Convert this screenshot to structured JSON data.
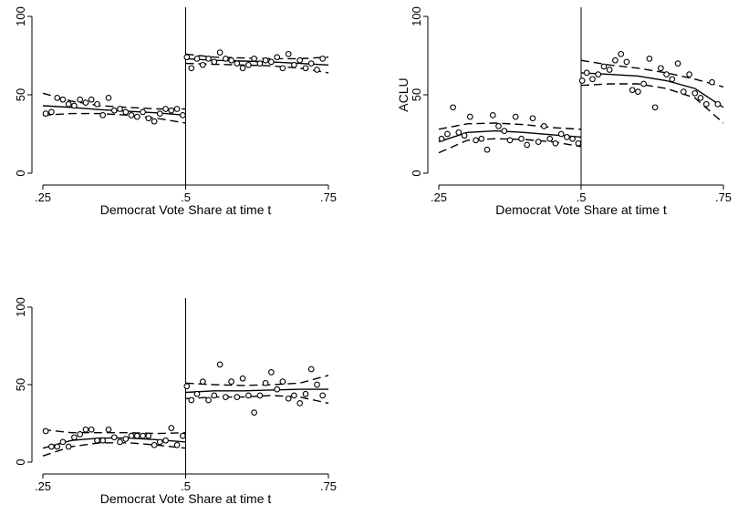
{
  "chart_data": [
    {
      "type": "scatter",
      "xlabel": "Democrat Vote Share at time t",
      "ylabel": "",
      "xlim": [
        0.25,
        0.75
      ],
      "ylim": [
        0,
        100
      ],
      "xticks": [
        ".25",
        ".5",
        ".75"
      ],
      "yticks": [
        "0",
        "50",
        "100"
      ],
      "threshold": 0.5,
      "points": [
        [
          0.255,
          38
        ],
        [
          0.265,
          39
        ],
        [
          0.275,
          48
        ],
        [
          0.285,
          47
        ],
        [
          0.295,
          44
        ],
        [
          0.305,
          43
        ],
        [
          0.315,
          47
        ],
        [
          0.325,
          45
        ],
        [
          0.335,
          47
        ],
        [
          0.345,
          44
        ],
        [
          0.355,
          37
        ],
        [
          0.365,
          48
        ],
        [
          0.375,
          40
        ],
        [
          0.385,
          41
        ],
        [
          0.395,
          39
        ],
        [
          0.405,
          37
        ],
        [
          0.415,
          36
        ],
        [
          0.425,
          39
        ],
        [
          0.435,
          35
        ],
        [
          0.445,
          33
        ],
        [
          0.455,
          38
        ],
        [
          0.465,
          41
        ],
        [
          0.475,
          40
        ],
        [
          0.485,
          41
        ],
        [
          0.495,
          37
        ],
        [
          0.502,
          74
        ],
        [
          0.51,
          67
        ],
        [
          0.52,
          73
        ],
        [
          0.53,
          69
        ],
        [
          0.54,
          73
        ],
        [
          0.55,
          71
        ],
        [
          0.56,
          77
        ],
        [
          0.57,
          73
        ],
        [
          0.58,
          72
        ],
        [
          0.59,
          70
        ],
        [
          0.6,
          67
        ],
        [
          0.61,
          69
        ],
        [
          0.62,
          73
        ],
        [
          0.63,
          70
        ],
        [
          0.64,
          72
        ],
        [
          0.65,
          71
        ],
        [
          0.66,
          74
        ],
        [
          0.67,
          67
        ],
        [
          0.68,
          76
        ],
        [
          0.69,
          69
        ],
        [
          0.7,
          72
        ],
        [
          0.71,
          67
        ],
        [
          0.72,
          70
        ],
        [
          0.73,
          66
        ],
        [
          0.74,
          73
        ]
      ],
      "fit_left": [
        [
          0.25,
          43
        ],
        [
          0.3,
          42
        ],
        [
          0.35,
          40.5
        ],
        [
          0.4,
          39.5
        ],
        [
          0.45,
          38.5
        ],
        [
          0.5,
          37
        ]
      ],
      "ci_upper_left": [
        [
          0.25,
          51
        ],
        [
          0.3,
          46
        ],
        [
          0.35,
          43
        ],
        [
          0.4,
          42
        ],
        [
          0.45,
          41
        ],
        [
          0.5,
          41
        ]
      ],
      "ci_lower_left": [
        [
          0.25,
          37
        ],
        [
          0.3,
          38
        ],
        [
          0.35,
          38
        ],
        [
          0.4,
          37
        ],
        [
          0.45,
          35
        ],
        [
          0.5,
          32
        ]
      ],
      "fit_right": [
        [
          0.5,
          73
        ],
        [
          0.55,
          72
        ],
        [
          0.6,
          71.5
        ],
        [
          0.65,
          71
        ],
        [
          0.7,
          70
        ],
        [
          0.75,
          69
        ]
      ],
      "ci_upper_right": [
        [
          0.5,
          76
        ],
        [
          0.55,
          74
        ],
        [
          0.6,
          73.5
        ],
        [
          0.65,
          73
        ],
        [
          0.7,
          73
        ],
        [
          0.75,
          74
        ]
      ],
      "ci_lower_right": [
        [
          0.5,
          70
        ],
        [
          0.55,
          69.5
        ],
        [
          0.6,
          69
        ],
        [
          0.65,
          68.5
        ],
        [
          0.7,
          67
        ],
        [
          0.75,
          64
        ]
      ]
    },
    {
      "type": "scatter",
      "xlabel": "Democrat Vote Share at time t",
      "ylabel": "ACLU",
      "xlim": [
        0.25,
        0.75
      ],
      "ylim": [
        0,
        100
      ],
      "xticks": [
        ".25",
        ".5",
        ".75"
      ],
      "yticks": [
        "0",
        "50",
        "100"
      ],
      "threshold": 0.5,
      "points": [
        [
          0.255,
          22
        ],
        [
          0.265,
          25
        ],
        [
          0.275,
          42
        ],
        [
          0.285,
          26
        ],
        [
          0.295,
          24
        ],
        [
          0.305,
          36
        ],
        [
          0.315,
          21
        ],
        [
          0.325,
          22
        ],
        [
          0.335,
          15
        ],
        [
          0.345,
          37
        ],
        [
          0.355,
          30
        ],
        [
          0.365,
          27
        ],
        [
          0.375,
          21
        ],
        [
          0.385,
          36
        ],
        [
          0.395,
          22
        ],
        [
          0.405,
          18
        ],
        [
          0.415,
          35
        ],
        [
          0.425,
          20
        ],
        [
          0.435,
          30
        ],
        [
          0.445,
          22
        ],
        [
          0.455,
          19
        ],
        [
          0.465,
          25
        ],
        [
          0.475,
          23
        ],
        [
          0.485,
          22
        ],
        [
          0.495,
          19
        ],
        [
          0.502,
          59
        ],
        [
          0.51,
          64
        ],
        [
          0.52,
          60
        ],
        [
          0.53,
          63
        ],
        [
          0.54,
          68
        ],
        [
          0.55,
          66
        ],
        [
          0.56,
          72
        ],
        [
          0.57,
          76
        ],
        [
          0.58,
          71
        ],
        [
          0.59,
          53
        ],
        [
          0.6,
          52
        ],
        [
          0.61,
          57
        ],
        [
          0.62,
          73
        ],
        [
          0.63,
          42
        ],
        [
          0.64,
          67
        ],
        [
          0.65,
          63
        ],
        [
          0.66,
          60
        ],
        [
          0.67,
          70
        ],
        [
          0.68,
          52
        ],
        [
          0.69,
          63
        ],
        [
          0.7,
          51
        ],
        [
          0.71,
          48
        ],
        [
          0.72,
          44
        ],
        [
          0.73,
          58
        ],
        [
          0.74,
          44
        ]
      ],
      "fit_left": [
        [
          0.25,
          20
        ],
        [
          0.3,
          26
        ],
        [
          0.35,
          27
        ],
        [
          0.4,
          26
        ],
        [
          0.45,
          24.5
        ],
        [
          0.5,
          23
        ]
      ],
      "ci_upper_left": [
        [
          0.25,
          28
        ],
        [
          0.3,
          31.5
        ],
        [
          0.35,
          32
        ],
        [
          0.4,
          31
        ],
        [
          0.45,
          29
        ],
        [
          0.5,
          28
        ]
      ],
      "ci_lower_left": [
        [
          0.25,
          13
        ],
        [
          0.3,
          21
        ],
        [
          0.35,
          22
        ],
        [
          0.4,
          21.5
        ],
        [
          0.45,
          20
        ],
        [
          0.5,
          17
        ]
      ],
      "fit_right": [
        [
          0.5,
          64
        ],
        [
          0.55,
          63
        ],
        [
          0.6,
          62
        ],
        [
          0.65,
          59
        ],
        [
          0.7,
          54
        ],
        [
          0.75,
          42
        ]
      ],
      "ci_upper_right": [
        [
          0.5,
          72
        ],
        [
          0.55,
          69
        ],
        [
          0.6,
          67
        ],
        [
          0.65,
          64
        ],
        [
          0.7,
          60
        ],
        [
          0.75,
          55
        ]
      ],
      "ci_lower_right": [
        [
          0.5,
          56
        ],
        [
          0.55,
          57
        ],
        [
          0.6,
          57
        ],
        [
          0.65,
          54
        ],
        [
          0.7,
          48
        ],
        [
          0.75,
          32
        ]
      ]
    },
    {
      "type": "scatter",
      "xlabel": "Democrat Vote Share at time t",
      "ylabel": "",
      "xlim": [
        0.25,
        0.75
      ],
      "ylim": [
        0,
        100
      ],
      "xticks": [
        ".25",
        ".5",
        ".75"
      ],
      "yticks": [
        "0",
        "50",
        "100"
      ],
      "threshold": 0.5,
      "points": [
        [
          0.255,
          20
        ],
        [
          0.265,
          10
        ],
        [
          0.275,
          10
        ],
        [
          0.285,
          13
        ],
        [
          0.295,
          10
        ],
        [
          0.305,
          16
        ],
        [
          0.315,
          18
        ],
        [
          0.325,
          21
        ],
        [
          0.335,
          21
        ],
        [
          0.345,
          14
        ],
        [
          0.355,
          14
        ],
        [
          0.365,
          21
        ],
        [
          0.375,
          16
        ],
        [
          0.385,
          13
        ],
        [
          0.395,
          15
        ],
        [
          0.405,
          17
        ],
        [
          0.415,
          17
        ],
        [
          0.425,
          17
        ],
        [
          0.435,
          17
        ],
        [
          0.445,
          11
        ],
        [
          0.455,
          13
        ],
        [
          0.465,
          14
        ],
        [
          0.475,
          22
        ],
        [
          0.485,
          11
        ],
        [
          0.495,
          17
        ],
        [
          0.502,
          49
        ],
        [
          0.51,
          40
        ],
        [
          0.52,
          44
        ],
        [
          0.53,
          52
        ],
        [
          0.54,
          40
        ],
        [
          0.55,
          43
        ],
        [
          0.56,
          63
        ],
        [
          0.57,
          42
        ],
        [
          0.58,
          52
        ],
        [
          0.59,
          42
        ],
        [
          0.6,
          54
        ],
        [
          0.61,
          43
        ],
        [
          0.62,
          32
        ],
        [
          0.63,
          43
        ],
        [
          0.64,
          51
        ],
        [
          0.65,
          58
        ],
        [
          0.66,
          47
        ],
        [
          0.67,
          52
        ],
        [
          0.68,
          41
        ],
        [
          0.69,
          43
        ],
        [
          0.7,
          38
        ],
        [
          0.71,
          44
        ],
        [
          0.72,
          60
        ],
        [
          0.73,
          50
        ],
        [
          0.74,
          43
        ]
      ],
      "fit_left": [
        [
          0.25,
          9
        ],
        [
          0.3,
          14
        ],
        [
          0.35,
          15.5
        ],
        [
          0.4,
          15.5
        ],
        [
          0.45,
          14.5
        ],
        [
          0.5,
          13
        ]
      ],
      "ci_upper_left": [
        [
          0.25,
          21
        ],
        [
          0.3,
          19
        ],
        [
          0.35,
          19
        ],
        [
          0.4,
          19
        ],
        [
          0.45,
          18.5
        ],
        [
          0.5,
          19
        ]
      ],
      "ci_lower_left": [
        [
          0.25,
          4
        ],
        [
          0.3,
          10
        ],
        [
          0.35,
          12.5
        ],
        [
          0.4,
          12.5
        ],
        [
          0.45,
          11
        ],
        [
          0.5,
          9
        ]
      ],
      "fit_right": [
        [
          0.5,
          45
        ],
        [
          0.55,
          46
        ],
        [
          0.6,
          46
        ],
        [
          0.65,
          46.5
        ],
        [
          0.7,
          47
        ],
        [
          0.75,
          47
        ]
      ],
      "ci_upper_right": [
        [
          0.5,
          51
        ],
        [
          0.55,
          50
        ],
        [
          0.6,
          49.5
        ],
        [
          0.65,
          50
        ],
        [
          0.7,
          51
        ],
        [
          0.75,
          56
        ]
      ],
      "ci_lower_right": [
        [
          0.5,
          41
        ],
        [
          0.55,
          42
        ],
        [
          0.6,
          42
        ],
        [
          0.65,
          43
        ],
        [
          0.7,
          42
        ],
        [
          0.75,
          38
        ]
      ]
    }
  ]
}
